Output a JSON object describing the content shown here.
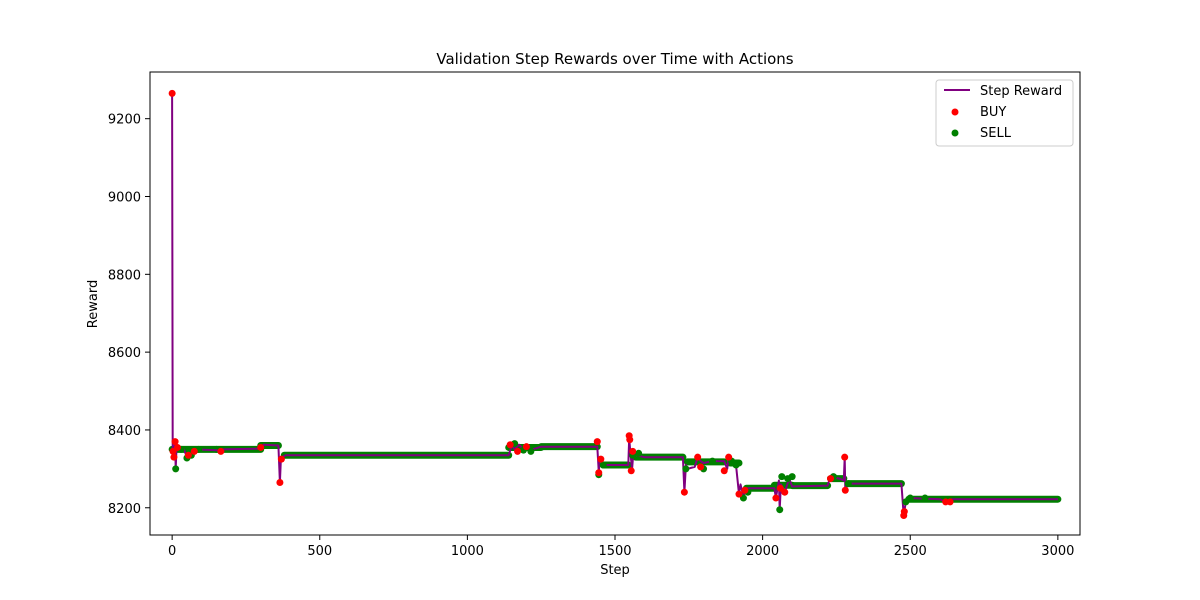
{
  "chart_data": {
    "type": "line",
    "title": "Validation Step Rewards over Time with Actions",
    "xlabel": "Step",
    "ylabel": "Reward",
    "xlim": [
      -75,
      3075
    ],
    "ylim": [
      8130,
      9320
    ],
    "x_ticks": [
      0,
      500,
      1000,
      1500,
      2000,
      2500,
      3000
    ],
    "y_ticks": [
      8200,
      8400,
      8600,
      8800,
      9000,
      9200
    ],
    "grid": false,
    "legend_position": "top-right",
    "series": [
      {
        "name": "Step Reward",
        "kind": "line",
        "color": "#800080",
        "points": [
          [
            0,
            9265
          ],
          [
            2,
            8340
          ],
          [
            5,
            8330
          ],
          [
            10,
            8370
          ],
          [
            12,
            8300
          ],
          [
            15,
            8360
          ],
          [
            20,
            8350
          ],
          [
            40,
            8350
          ],
          [
            50,
            8330
          ],
          [
            60,
            8335
          ],
          [
            70,
            8340
          ],
          [
            80,
            8350
          ],
          [
            150,
            8348
          ],
          [
            165,
            8345
          ],
          [
            170,
            8350
          ],
          [
            300,
            8352
          ],
          [
            310,
            8362
          ],
          [
            360,
            8360
          ],
          [
            365,
            8265
          ],
          [
            368,
            8320
          ],
          [
            372,
            8330
          ],
          [
            385,
            8335
          ],
          [
            1140,
            8335
          ],
          [
            1150,
            8360
          ],
          [
            1160,
            8350
          ],
          [
            1175,
            8362
          ],
          [
            1190,
            8350
          ],
          [
            1200,
            8355
          ],
          [
            1220,
            8350
          ],
          [
            1250,
            8357
          ],
          [
            1440,
            8357
          ],
          [
            1445,
            8290
          ],
          [
            1448,
            8325
          ],
          [
            1455,
            8320
          ],
          [
            1460,
            8310
          ],
          [
            1545,
            8310
          ],
          [
            1548,
            8380
          ],
          [
            1552,
            8340
          ],
          [
            1558,
            8300
          ],
          [
            1562,
            8340
          ],
          [
            1570,
            8335
          ],
          [
            1600,
            8330
          ],
          [
            1730,
            8330
          ],
          [
            1735,
            8240
          ],
          [
            1740,
            8310
          ],
          [
            1745,
            8300
          ],
          [
            1770,
            8305
          ],
          [
            1780,
            8330
          ],
          [
            1790,
            8320
          ],
          [
            1800,
            8315
          ],
          [
            1830,
            8320
          ],
          [
            1870,
            8320
          ],
          [
            1880,
            8300
          ],
          [
            1885,
            8330
          ],
          [
            1895,
            8320
          ],
          [
            1910,
            8310
          ],
          [
            1920,
            8235
          ],
          [
            1925,
            8260
          ],
          [
            1935,
            8230
          ],
          [
            1945,
            8250
          ],
          [
            1960,
            8250
          ],
          [
            2040,
            8250
          ],
          [
            2045,
            8225
          ],
          [
            2055,
            8270
          ],
          [
            2058,
            8195
          ],
          [
            2062,
            8260
          ],
          [
            2075,
            8240
          ],
          [
            2090,
            8275
          ],
          [
            2100,
            8255
          ],
          [
            2220,
            8257
          ],
          [
            2230,
            8280
          ],
          [
            2260,
            8275
          ],
          [
            2275,
            8270
          ],
          [
            2278,
            8330
          ],
          [
            2280,
            8245
          ],
          [
            2290,
            8262
          ],
          [
            2470,
            8262
          ],
          [
            2478,
            8180
          ],
          [
            2485,
            8215
          ],
          [
            2495,
            8225
          ],
          [
            2600,
            8222
          ],
          [
            2620,
            8215
          ],
          [
            2640,
            8222
          ],
          [
            3000,
            8222
          ]
        ]
      },
      {
        "name": "BUY",
        "kind": "scatter",
        "color": "#ff0000",
        "points": [
          [
            0,
            9265
          ],
          [
            3,
            8345
          ],
          [
            6,
            8330
          ],
          [
            10,
            8370
          ],
          [
            18,
            8355
          ],
          [
            55,
            8335
          ],
          [
            75,
            8345
          ],
          [
            165,
            8345
          ],
          [
            300,
            8355
          ],
          [
            365,
            8265
          ],
          [
            370,
            8325
          ],
          [
            1145,
            8362
          ],
          [
            1170,
            8345
          ],
          [
            1200,
            8357
          ],
          [
            1440,
            8370
          ],
          [
            1445,
            8290
          ],
          [
            1452,
            8325
          ],
          [
            1548,
            8385
          ],
          [
            1550,
            8375
          ],
          [
            1555,
            8295
          ],
          [
            1560,
            8345
          ],
          [
            1735,
            8240
          ],
          [
            1780,
            8330
          ],
          [
            1790,
            8305
          ],
          [
            1870,
            8295
          ],
          [
            1885,
            8330
          ],
          [
            1920,
            8235
          ],
          [
            1940,
            8245
          ],
          [
            2045,
            8225
          ],
          [
            2060,
            8250
          ],
          [
            2075,
            8240
          ],
          [
            2230,
            8275
          ],
          [
            2278,
            8330
          ],
          [
            2280,
            8245
          ],
          [
            2478,
            8180
          ],
          [
            2480,
            8190
          ],
          [
            2620,
            8215
          ],
          [
            2635,
            8215
          ]
        ]
      },
      {
        "name": "SELL",
        "kind": "scatter",
        "color": "#008000",
        "points": [
          [
            12,
            8300
          ],
          [
            30,
            8350
          ],
          [
            50,
            8328
          ],
          [
            65,
            8335
          ],
          [
            90,
            8350
          ],
          [
            1160,
            8365
          ],
          [
            1190,
            8348
          ],
          [
            1215,
            8345
          ],
          [
            1445,
            8285
          ],
          [
            1460,
            8310
          ],
          [
            1560,
            8335
          ],
          [
            1580,
            8340
          ],
          [
            1740,
            8300
          ],
          [
            1800,
            8300
          ],
          [
            1830,
            8320
          ],
          [
            1895,
            8320
          ],
          [
            1910,
            8310
          ],
          [
            1935,
            8225
          ],
          [
            1950,
            8240
          ],
          [
            2058,
            8195
          ],
          [
            2065,
            8280
          ],
          [
            2085,
            8275
          ],
          [
            2100,
            8280
          ],
          [
            2240,
            8280
          ],
          [
            2290,
            8262
          ],
          [
            2485,
            8215
          ],
          [
            2500,
            8225
          ],
          [
            2550,
            8225
          ]
        ],
        "dense_runs": [
          [
            0,
            150,
            8350
          ],
          [
            150,
            300,
            8350
          ],
          [
            300,
            360,
            8360
          ],
          [
            380,
            1140,
            8335
          ],
          [
            1140,
            1250,
            8355
          ],
          [
            1250,
            1440,
            8357
          ],
          [
            1460,
            1545,
            8310
          ],
          [
            1570,
            1730,
            8330
          ],
          [
            1745,
            1870,
            8318
          ],
          [
            1890,
            1920,
            8315
          ],
          [
            1945,
            2040,
            8250
          ],
          [
            2040,
            2100,
            8258
          ],
          [
            2100,
            2220,
            8257
          ],
          [
            2230,
            2275,
            8275
          ],
          [
            2290,
            2470,
            8262
          ],
          [
            2495,
            3000,
            8222
          ]
        ]
      }
    ]
  },
  "legend": {
    "items": [
      {
        "label": "Step Reward",
        "kind": "line",
        "color": "#800080"
      },
      {
        "label": "BUY",
        "kind": "marker",
        "color": "#ff0000"
      },
      {
        "label": "SELL",
        "kind": "marker",
        "color": "#008000"
      }
    ]
  }
}
